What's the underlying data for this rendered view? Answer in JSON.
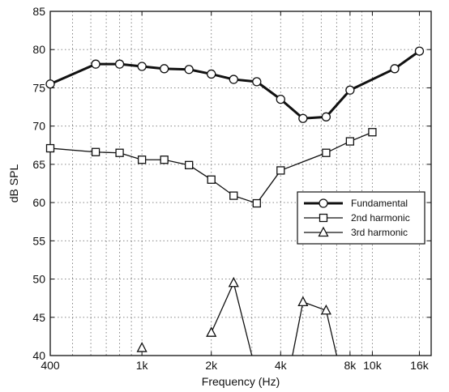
{
  "chart_data": {
    "type": "line",
    "xscale": "log",
    "xlabel": "Frequency (Hz)",
    "ylabel": "dB SPL",
    "xlim": [
      400,
      18000
    ],
    "ylim": [
      40,
      85
    ],
    "grid": true,
    "grid_style": "dotted",
    "legend_position": "center-right",
    "x_ticks": [
      {
        "value": 400,
        "label": "400"
      },
      {
        "value": 1000,
        "label": "1k"
      },
      {
        "value": 2000,
        "label": "2k"
      },
      {
        "value": 4000,
        "label": "4k"
      },
      {
        "value": 8000,
        "label": "8k"
      },
      {
        "value": 10000,
        "label": "10k"
      },
      {
        "value": 16000,
        "label": "16k"
      }
    ],
    "x_minor_grid": [
      500,
      600,
      700,
      800,
      900,
      3000,
      5000,
      6000,
      7000,
      9000
    ],
    "y_ticks": [
      40,
      45,
      50,
      55,
      60,
      65,
      70,
      75,
      80,
      85
    ],
    "series": [
      {
        "name": "Fundamental",
        "marker": "circle",
        "line_width": 3,
        "segments": [
          [
            [
              400,
              75.5
            ],
            [
              630,
              78.1
            ],
            [
              800,
              78.1
            ],
            [
              1000,
              77.8
            ],
            [
              1250,
              77.5
            ],
            [
              1600,
              77.4
            ],
            [
              2000,
              76.8
            ],
            [
              2500,
              76.1
            ],
            [
              3150,
              75.8
            ],
            [
              4000,
              73.5
            ],
            [
              5000,
              71.0
            ],
            [
              6300,
              71.2
            ],
            [
              8000,
              74.7
            ],
            [
              12500,
              77.5
            ],
            [
              16000,
              79.8
            ]
          ]
        ]
      },
      {
        "name": "2nd harmonic",
        "marker": "square",
        "line_width": 1.3,
        "segments": [
          [
            [
              400,
              67.1
            ],
            [
              630,
              66.6
            ],
            [
              800,
              66.5
            ],
            [
              1000,
              65.6
            ],
            [
              1250,
              65.6
            ],
            [
              1600,
              64.9
            ],
            [
              2000,
              63.0
            ],
            [
              2500,
              60.9
            ],
            [
              3150,
              59.9
            ],
            [
              4000,
              64.2
            ],
            [
              6300,
              66.5
            ],
            [
              8000,
              68.0
            ],
            [
              10000,
              69.2
            ]
          ]
        ]
      },
      {
        "name": "3rd harmonic",
        "marker": "triangle",
        "line_width": 1.3,
        "segments": [
          [
            [
              1000,
              41.0
            ]
          ],
          [
            [
              2000,
              43.0
            ],
            [
              2500,
              49.5
            ],
            [
              3000,
              40
            ]
          ],
          [
            [
              4500,
              40
            ],
            [
              5000,
              47.0
            ],
            [
              6300,
              45.9
            ],
            [
              7000,
              40
            ]
          ]
        ]
      }
    ]
  }
}
